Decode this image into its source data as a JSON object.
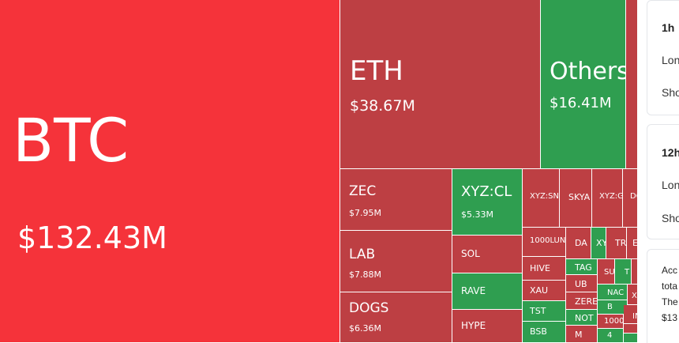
{
  "chart_data": {
    "type": "treemap",
    "tiles": [
      {
        "name": "BTC",
        "value": "$132.43M",
        "trend": "down"
      },
      {
        "name": "ETH",
        "value": "$38.67M",
        "trend": "down"
      },
      {
        "name": "Others",
        "value": "$16.41M",
        "trend": "up"
      },
      {
        "name": "",
        "value": "",
        "trend": "down"
      },
      {
        "name": "ZEC",
        "value": "$7.95M",
        "trend": "down"
      },
      {
        "name": "LAB",
        "value": "$7.88M",
        "trend": "down"
      },
      {
        "name": "DOGS",
        "value": "$6.36M",
        "trend": "down"
      },
      {
        "name": "XYZ:CL",
        "value": "$5.33M",
        "trend": "up"
      },
      {
        "name": "SOL",
        "value": "",
        "trend": "down"
      },
      {
        "name": "RAVE",
        "value": "",
        "trend": "up"
      },
      {
        "name": "HYPE",
        "value": "",
        "trend": "down"
      },
      {
        "name": "XYZ:SN",
        "value": "",
        "trend": "down"
      },
      {
        "name": "SKYA",
        "value": "",
        "trend": "down"
      },
      {
        "name": "XYZ:G",
        "value": "",
        "trend": "down"
      },
      {
        "name": "DO",
        "value": "",
        "trend": "down"
      },
      {
        "name": "1000LUN",
        "value": "",
        "trend": "down"
      },
      {
        "name": "HIVE",
        "value": "",
        "trend": "down"
      },
      {
        "name": "XAU",
        "value": "",
        "trend": "down"
      },
      {
        "name": "TST",
        "value": "",
        "trend": "up"
      },
      {
        "name": "BSB",
        "value": "",
        "trend": "up"
      },
      {
        "name": "DA",
        "value": "",
        "trend": "down"
      },
      {
        "name": "XY",
        "value": "",
        "trend": "up"
      },
      {
        "name": "TR",
        "value": "",
        "trend": "down"
      },
      {
        "name": "E",
        "value": "",
        "trend": "down"
      },
      {
        "name": "TAG",
        "value": "",
        "trend": "up"
      },
      {
        "name": "UB",
        "value": "",
        "trend": "down"
      },
      {
        "name": "ZERE",
        "value": "",
        "trend": "down"
      },
      {
        "name": "NOT",
        "value": "",
        "trend": "up"
      },
      {
        "name": "M",
        "value": "",
        "trend": "down"
      },
      {
        "name": "SU",
        "value": "",
        "trend": "down"
      },
      {
        "name": "T",
        "value": "",
        "trend": "up"
      },
      {
        "name": "",
        "value": "",
        "trend": "down"
      },
      {
        "name": "NAC",
        "value": "",
        "trend": "up"
      },
      {
        "name": "B",
        "value": "",
        "trend": "up"
      },
      {
        "name": "1000",
        "value": "",
        "trend": "down"
      },
      {
        "name": "4",
        "value": "",
        "trend": "up"
      },
      {
        "name": "X",
        "value": "",
        "trend": "down"
      },
      {
        "name": "IN",
        "value": "",
        "trend": "down"
      },
      {
        "name": "",
        "value": "",
        "trend": "down"
      },
      {
        "name": "",
        "value": "",
        "trend": "up"
      }
    ]
  },
  "colors": {
    "down": "#bd3f43",
    "down_bright": "#f5333a",
    "up": "#2f9e50"
  },
  "side": {
    "card1": {
      "title": "1h",
      "row1": "Lon",
      "row2": "Sho"
    },
    "card2": {
      "title": "12h",
      "row1": "Lon",
      "row2": "Sho"
    },
    "note": {
      "line1": "Acc",
      "line2": "tota",
      "line3": "The",
      "line4": "$13"
    }
  }
}
